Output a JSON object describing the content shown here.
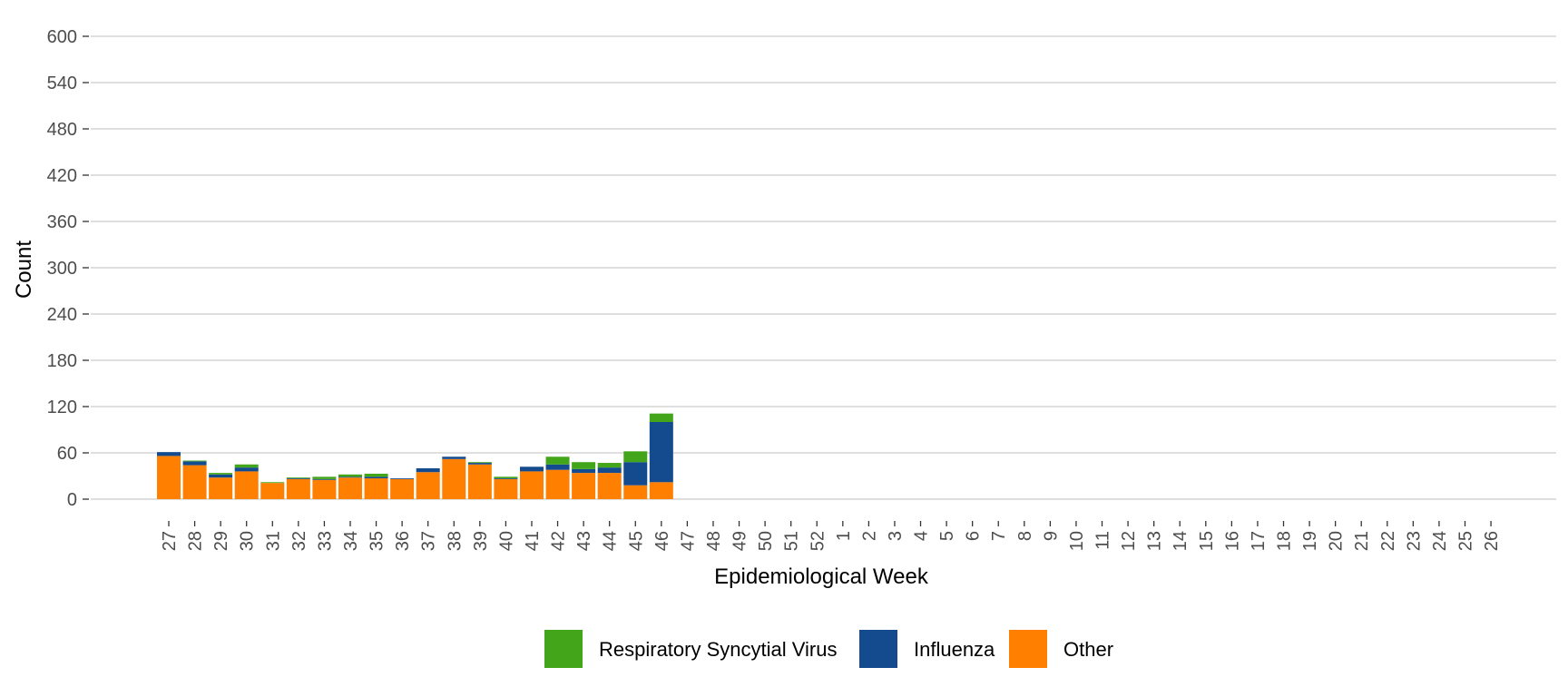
{
  "chart_data": {
    "type": "bar",
    "stacked": true,
    "xlabel": "Epidemiological Week",
    "ylabel": "Count",
    "ylim": [
      0,
      600
    ],
    "y_ticks": [
      0,
      60,
      120,
      180,
      240,
      300,
      360,
      420,
      480,
      540,
      600
    ],
    "grid": "horizontal",
    "legend_position": "bottom",
    "categories": [
      "27",
      "28",
      "29",
      "30",
      "31",
      "32",
      "33",
      "34",
      "35",
      "36",
      "37",
      "38",
      "39",
      "40",
      "41",
      "42",
      "43",
      "44",
      "45",
      "46",
      "47",
      "48",
      "49",
      "50",
      "51",
      "52",
      "1",
      "2",
      "3",
      "4",
      "5",
      "6",
      "7",
      "8",
      "9",
      "10",
      "11",
      "12",
      "13",
      "14",
      "15",
      "16",
      "17",
      "18",
      "19",
      "20",
      "21",
      "22",
      "23",
      "24",
      "25",
      "26"
    ],
    "series": [
      {
        "name": "Other",
        "color": "#FF7F00",
        "values": [
          56,
          44,
          28,
          36,
          21,
          26,
          25,
          28,
          27,
          26,
          35,
          52,
          45,
          26,
          36,
          38,
          34,
          34,
          18,
          22,
          null,
          null,
          null,
          null,
          null,
          null,
          null,
          null,
          null,
          null,
          null,
          null,
          null,
          null,
          null,
          null,
          null,
          null,
          null,
          null,
          null,
          null,
          null,
          null,
          null,
          null,
          null,
          null,
          null,
          null,
          null,
          null
        ]
      },
      {
        "name": "Influenza",
        "color": "#144A8E",
        "values": [
          5,
          5,
          4,
          5,
          0,
          1,
          1,
          1,
          2,
          1,
          5,
          3,
          2,
          1,
          6,
          7,
          5,
          7,
          30,
          78,
          null,
          null,
          null,
          null,
          null,
          null,
          null,
          null,
          null,
          null,
          null,
          null,
          null,
          null,
          null,
          null,
          null,
          null,
          null,
          null,
          null,
          null,
          null,
          null,
          null,
          null,
          null,
          null,
          null,
          null,
          null,
          null
        ]
      },
      {
        "name": "Respiratory Syncytial Virus",
        "color": "#43A519",
        "values": [
          0,
          1,
          2,
          4,
          1,
          1,
          3,
          3,
          4,
          0,
          0,
          0,
          1,
          2,
          0,
          10,
          9,
          6,
          14,
          11,
          null,
          null,
          null,
          null,
          null,
          null,
          null,
          null,
          null,
          null,
          null,
          null,
          null,
          null,
          null,
          null,
          null,
          null,
          null,
          null,
          null,
          null,
          null,
          null,
          null,
          null,
          null,
          null,
          null,
          null,
          null,
          null
        ]
      }
    ],
    "legend": [
      {
        "name": "Respiratory Syncytial Virus",
        "color": "#43A519"
      },
      {
        "name": "Influenza",
        "color": "#144A8E"
      },
      {
        "name": "Other",
        "color": "#FF7F00"
      }
    ]
  }
}
